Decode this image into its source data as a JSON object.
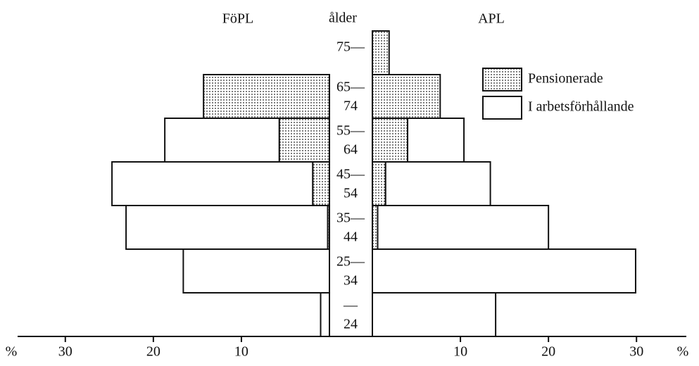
{
  "chart_data": {
    "type": "pyramid",
    "left_title": "FöPL",
    "center_title": "ålder",
    "right_title": "APL",
    "categories": [
      [
        "—",
        "24"
      ],
      [
        "25—",
        "34"
      ],
      [
        "35—",
        "44"
      ],
      [
        "45—",
        "54"
      ],
      [
        "55—",
        "64"
      ],
      [
        "65—",
        "74"
      ],
      [
        "75—"
      ]
    ],
    "series": [
      {
        "name": "Pensionerade",
        "fill": "dots",
        "left_values": [
          0,
          0,
          0.2,
          1.9,
          5.7,
          14.3,
          0
        ],
        "right_values": [
          0,
          0,
          0.6,
          1.5,
          4.0,
          7.7,
          1.9
        ]
      },
      {
        "name": "I arbetsförhållande",
        "fill": "none",
        "left_values": [
          1.0,
          16.6,
          22.9,
          22.8,
          13.0,
          0,
          0
        ],
        "right_values": [
          14.0,
          29.9,
          19.4,
          11.9,
          6.4,
          0,
          0
        ]
      }
    ],
    "xlim": [
      0,
      35.5
    ],
    "xticks": [
      10,
      20,
      30
    ],
    "unit": "%"
  }
}
